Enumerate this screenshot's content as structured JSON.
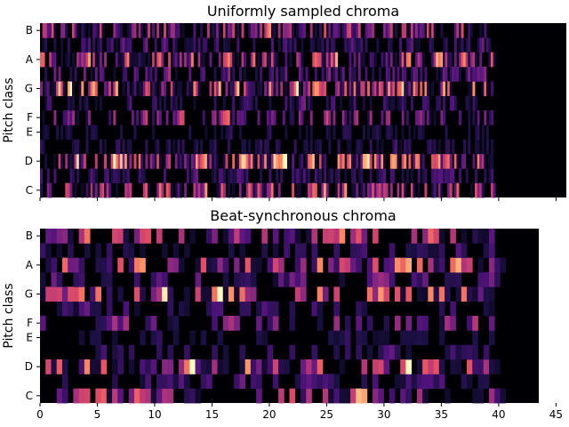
{
  "chart_data": [
    {
      "type": "heatmap",
      "title": "Uniformly sampled chroma",
      "ylabel": "Pitch class",
      "xlabel": "",
      "y_tick_labels": [
        "C",
        "D",
        "E",
        "F",
        "G",
        "A",
        "B"
      ],
      "show_x_tick_labels": false,
      "x_ticks": [
        0,
        5,
        10,
        15,
        20,
        25,
        30,
        35,
        40,
        45
      ],
      "xlim": [
        0,
        45.9
      ],
      "data_extent_seconds": 45.9,
      "n_frames": 230,
      "seed": 7,
      "colormap": "magma",
      "grid": false
    },
    {
      "type": "heatmap",
      "title": "Beat-synchronous chroma",
      "ylabel": "Pitch class",
      "xlabel": "",
      "y_tick_labels": [
        "C",
        "D",
        "E",
        "F",
        "G",
        "A",
        "B"
      ],
      "x_tick_labels": [
        "0",
        "5",
        "10",
        "15",
        "20",
        "25",
        "30",
        "35",
        "40",
        "45"
      ],
      "x_ticks": [
        0,
        5,
        10,
        15,
        20,
        25,
        30,
        35,
        40,
        45
      ],
      "xlim": [
        0,
        45.9
      ],
      "data_extent_seconds": 43.5,
      "n_frames": 90,
      "seed": 11,
      "colormap": "magma",
      "grid": false
    }
  ]
}
